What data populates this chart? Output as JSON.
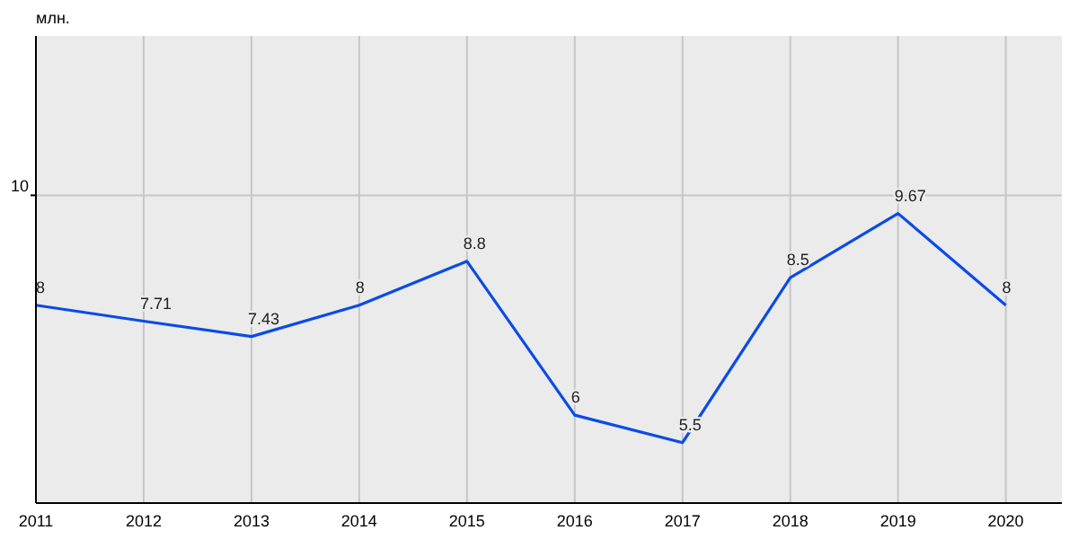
{
  "chart_data": {
    "type": "line",
    "ylabel": "млн.",
    "categories": [
      "2011",
      "2012",
      "2013",
      "2014",
      "2015",
      "2016",
      "2017",
      "2018",
      "2019",
      "2020"
    ],
    "series": [
      {
        "color": "#0a4be6",
        "values": [
          8,
          7.71,
          7.43,
          8,
          8.8,
          6,
          5.5,
          8.5,
          9.67,
          8
        ]
      }
    ],
    "ylim": [
      4.4,
      12.9
    ],
    "ref_lines": [
      {
        "axis": "y",
        "value": 10,
        "label": "10",
        "color": "#c6c6c6"
      }
    ],
    "data_labels": true,
    "grid": "x",
    "marker": "none",
    "line_style": "solid"
  }
}
